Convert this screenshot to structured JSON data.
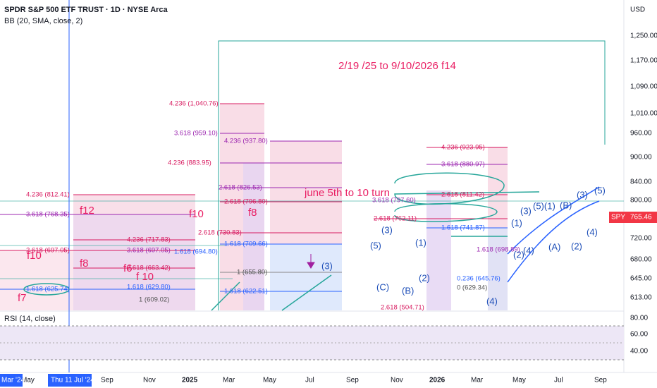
{
  "header": {
    "symbol": "SPDR S&P 500 ETF TRUST · 1D · NYSE Arca",
    "indicator": "BB (20, SMA, close, 2)",
    "currency": "USD"
  },
  "price_axis": {
    "labels": [
      "1,250.00",
      "1,170.00",
      "1,090.00",
      "1,010.00",
      "960.00",
      "900.00",
      "840.00",
      "800.00",
      "720.00",
      "680.00",
      "645.00",
      "613.00"
    ],
    "last_price": {
      "ticker": "SPY",
      "value": "765.46"
    }
  },
  "rsi": {
    "title": "RSI (14, close)",
    "labels": [
      "80.00",
      "60.00",
      "40.00"
    ]
  },
  "time_axis": {
    "labels": [
      "May",
      "Sep",
      "Nov",
      "2025",
      "Mar",
      "May",
      "Jul",
      "Sep",
      "Nov",
      "2026",
      "Mar",
      "May",
      "Jul",
      "Sep"
    ],
    "crosshair_labels": [
      "Mar '24",
      "Thu 11 Jul '24"
    ]
  },
  "annotations": [
    "2/19 /25 to 9/10/2026 f14",
    "june 5th to 10 turn",
    "f12",
    "f10",
    "f8",
    "f10",
    "f8",
    "f6",
    "f 10",
    "f7"
  ],
  "fib_labels": [
    "4.236 (1,040.76)",
    "3.618 (959.10)",
    "4.236 (937.80)",
    "4.236 (883.95)",
    "2.618 (826.53)",
    "4.236 (812.41)",
    "2.618 (796.80)",
    "3.618 (768.35)",
    "2.618 (730.83)",
    "4.236 (717.83)",
    "1.618 (709.66)",
    "3.618 (697.05)",
    "2.618 (697.05)",
    "1.618 (694.80)",
    "2.618 (663.42)",
    "1 (655.80)",
    "1.618 (629.80)",
    "1.618 (625.74)",
    "1.618 (622.51)",
    "1 (609.02)",
    "4.236 (923.95)",
    "3.618 (880.97)",
    "2.618 (811.42)",
    "3.618 (797.60)",
    "2.618 (762.11)",
    "1.618 (741.87)",
    "1.618 (698.89)",
    "0.236 (645.76)",
    "0 (629.34)",
    "2.618 (504.71)"
  ],
  "wave_labels": [
    "(3)",
    "(1)",
    "(3)",
    "(5)(1)",
    "(B)",
    "(3)",
    "(5)",
    "(4)",
    "(2)",
    "(A)",
    "(2)",
    "(4)",
    "(4)",
    "(2)",
    "(C)",
    "(B)",
    "(3)",
    "(5)",
    "(1)"
  ]
}
